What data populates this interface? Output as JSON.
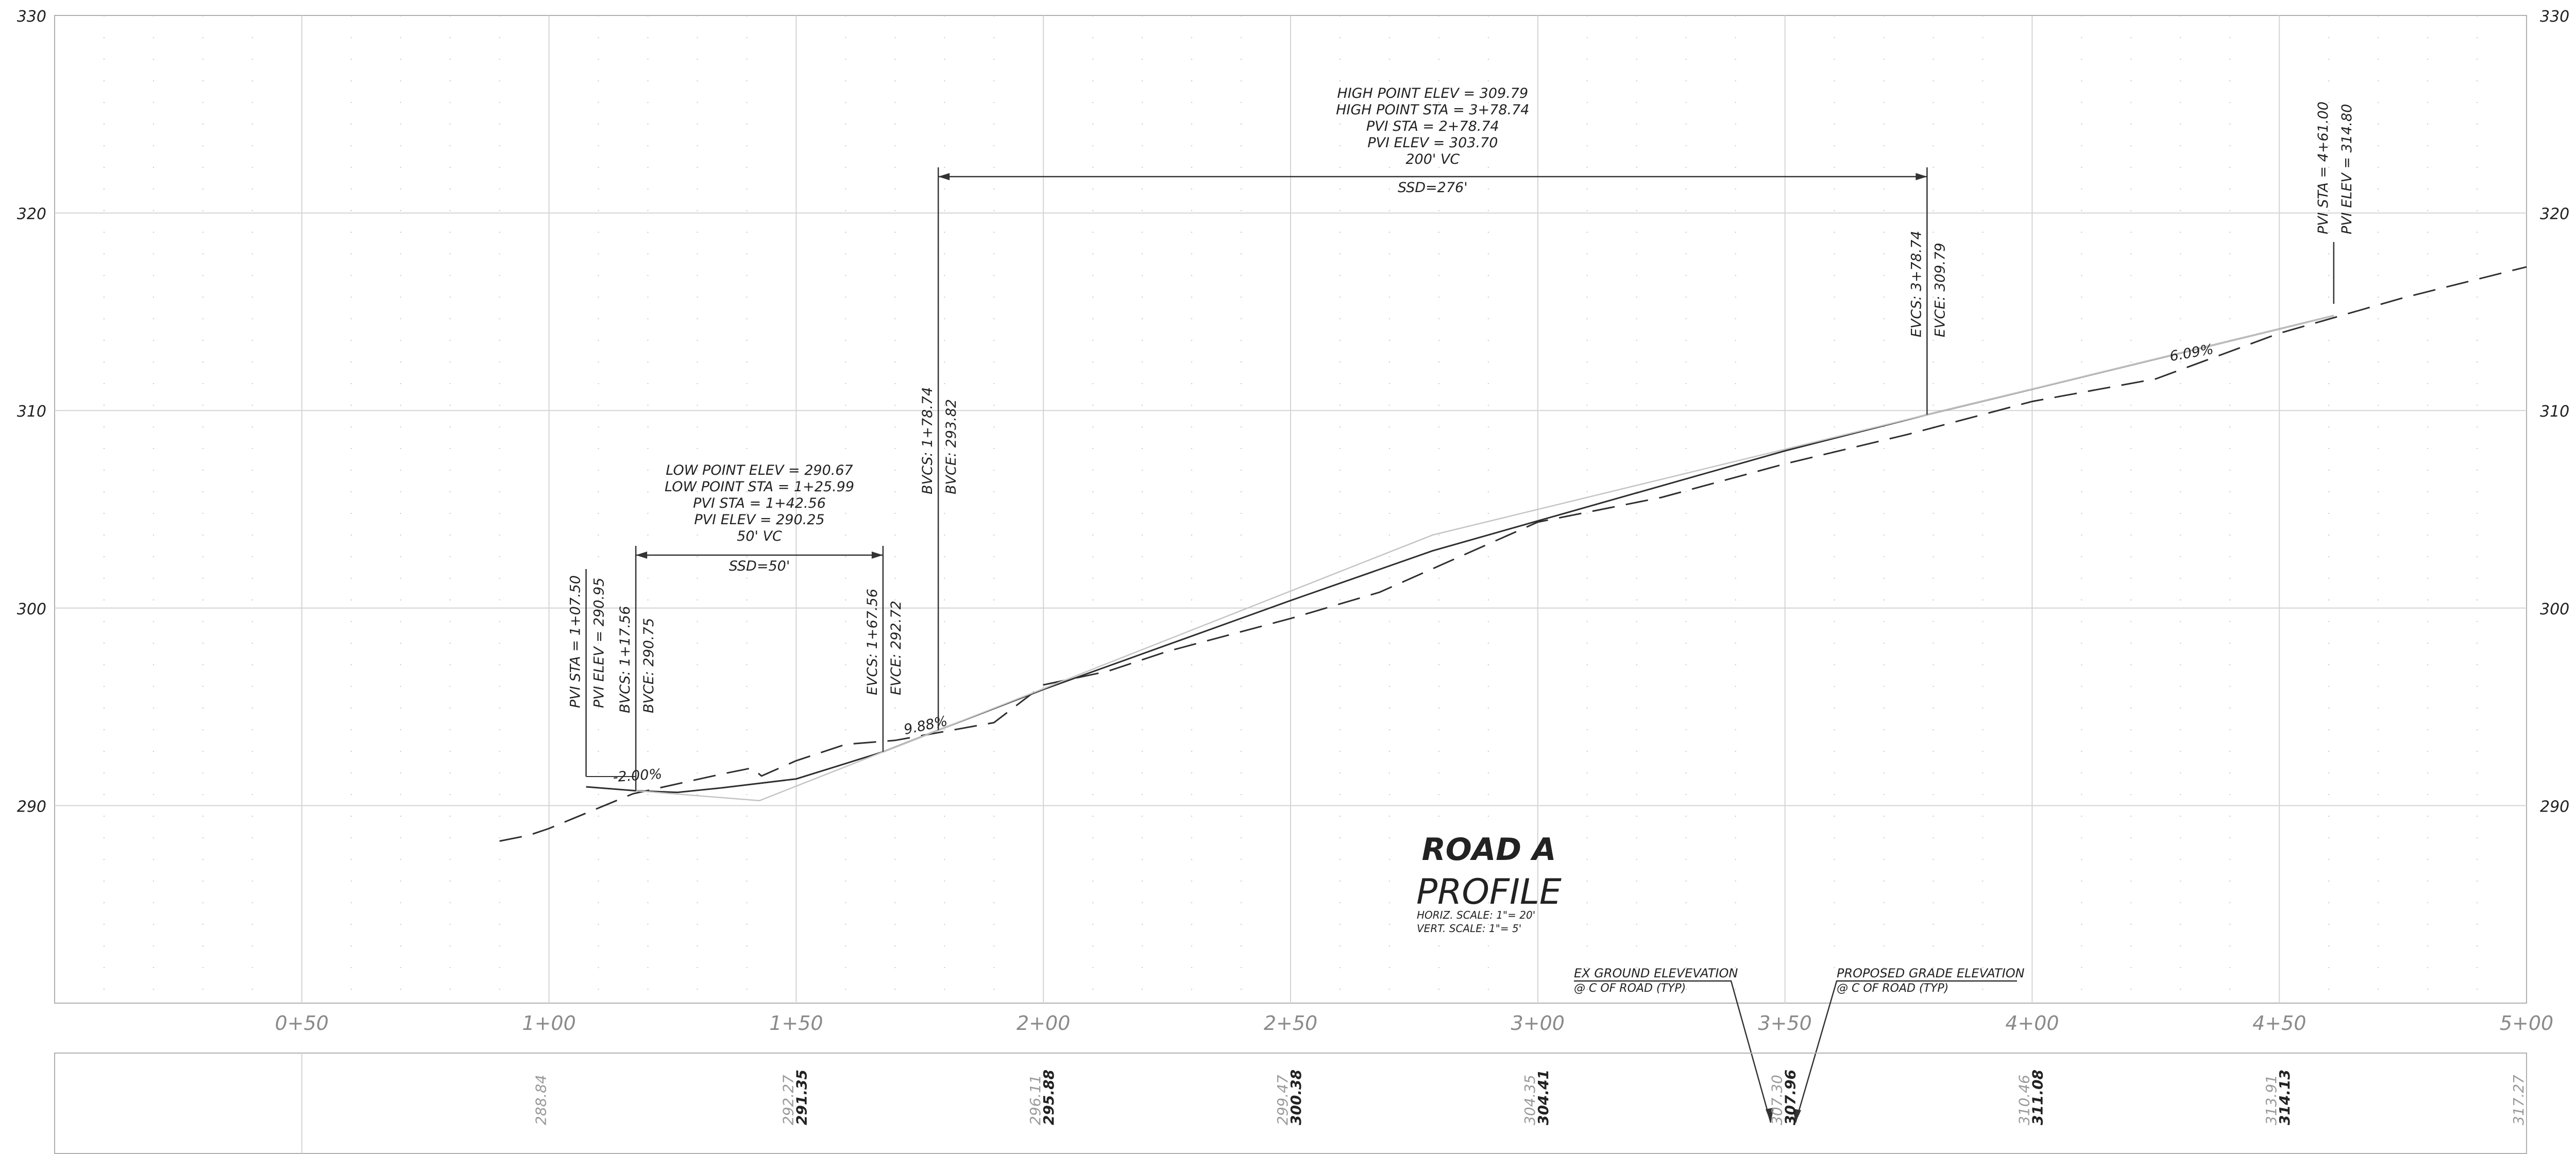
{
  "chart_data": {
    "type": "line",
    "title": "ROAD A",
    "subtitle": "PROFILE",
    "scale_notes": [
      "HORIZ. SCALE:   1\"= 20'",
      "VERT. SCALE:   1\"= 5'"
    ],
    "xlim": [
      0,
      500
    ],
    "ylim": [
      280,
      330
    ],
    "x_ticks": [
      "0+50",
      "1+00",
      "1+50",
      "2+00",
      "2+50",
      "3+00",
      "3+50",
      "4+00",
      "4+50",
      "5+00"
    ],
    "y_ticks": [
      "290",
      "300",
      "310",
      "320",
      "330"
    ],
    "series": [
      {
        "name": "PROPOSED GRADE ELEVATION",
        "style": "solid",
        "points": [
          [
            107.5,
            290.95
          ],
          [
            117.56,
            290.75
          ],
          [
            125.99,
            290.67
          ],
          [
            135,
            290.9
          ],
          [
            150,
            291.35
          ],
          [
            167.56,
            292.72
          ],
          [
            178.74,
            293.82
          ],
          [
            200,
            295.88
          ],
          [
            250,
            300.38
          ],
          [
            278.74,
            302.9
          ],
          [
            300,
            304.41
          ],
          [
            350,
            307.96
          ],
          [
            378.74,
            309.79
          ],
          [
            400,
            311.08
          ],
          [
            450,
            314.13
          ],
          [
            461,
            314.8
          ]
        ]
      },
      {
        "name": "EX GROUND ELEVEVATION",
        "style": "dashed",
        "points": [
          [
            90,
            288.2
          ],
          [
            96,
            288.5
          ],
          [
            100,
            288.84
          ],
          [
            117,
            290.6
          ],
          [
            135,
            291.6
          ],
          [
            141,
            291.9
          ],
          [
            143,
            291.5
          ],
          [
            150,
            292.27
          ],
          [
            160,
            293.1
          ],
          [
            170,
            293.3
          ],
          [
            190,
            294.2
          ],
          [
            200,
            296.11
          ],
          [
            213,
            296.8
          ],
          [
            225,
            297.8
          ],
          [
            250,
            299.47
          ],
          [
            268,
            300.8
          ],
          [
            300,
            304.35
          ],
          [
            325,
            305.6
          ],
          [
            350,
            307.3
          ],
          [
            375,
            308.8
          ],
          [
            400,
            310.46
          ],
          [
            425,
            311.6
          ],
          [
            450,
            313.91
          ],
          [
            475,
            315.7
          ],
          [
            500,
            317.27
          ]
        ]
      },
      {
        "name": "",
        "style": "thin",
        "points": [
          [
            117.56,
            290.75
          ],
          [
            142.56,
            290.25
          ],
          [
            178.74,
            293.82
          ],
          [
            278.74,
            303.7
          ],
          [
            378.74,
            309.79
          ],
          [
            461,
            314.8
          ]
        ]
      }
    ],
    "vertical_curves": [
      {
        "labels": [
          "LOW POINT ELEV = 290.67",
          "LOW POINT STA = 1+25.99",
          "PVI STA = 1+42.56",
          "PVI ELEV = 290.25",
          "50' VC"
        ],
        "ssd": "SSD=50'",
        "bvc": {
          "station": 117.56,
          "elev": 290.75,
          "label_a": "BVCS: 1+17.56",
          "label_b": "BVCE: 290.75"
        },
        "evc": {
          "station": 167.56,
          "elev": 292.72,
          "label_a": "EVCS: 1+67.56",
          "label_b": "EVCE: 292.72"
        }
      },
      {
        "labels": [
          "HIGH POINT ELEV = 309.79",
          "HIGH POINT STA = 3+78.74",
          "PVI STA = 2+78.74",
          "PVI ELEV = 303.70",
          "200' VC"
        ],
        "ssd": "SSD=276'",
        "bvc": {
          "station": 178.74,
          "elev": 293.82,
          "label_a": "BVCS: 1+78.74",
          "label_b": "BVCE: 293.82"
        },
        "evc": {
          "station": 378.74,
          "elev": 309.79,
          "label_a": "EVCS: 3+78.74",
          "label_b": "EVCE: 309.79"
        }
      }
    ],
    "pvi_callouts": [
      {
        "station": 107.5,
        "elev": 290.95,
        "label_a": "PVI STA = 1+07.50",
        "label_b": "PVI ELEV = 290.95"
      },
      {
        "station": 461.0,
        "elev": 314.8,
        "label_a": "PVI STA = 4+61.00",
        "label_b": "PVI ELEV = 314.80"
      }
    ],
    "grade_labels": [
      {
        "text": "-2.00%",
        "station": 113,
        "elev": 291.2
      },
      {
        "text": "9.88%",
        "station": 172,
        "elev": 293.6
      },
      {
        "text": "6.09%",
        "station": 428,
        "elev": 312.5
      }
    ],
    "legend_callouts": [
      {
        "line1": "EX GROUND ELEVEVATION",
        "line2": "@ C OF ROAD (TYP)"
      },
      {
        "line1": "PROPOSED GRADE ELEVATION",
        "line2": "@ C OF ROAD (TYP)"
      }
    ],
    "elevation_table": [
      {
        "station": 100,
        "existing": "288.84",
        "proposed": ""
      },
      {
        "station": 150,
        "existing": "292.27",
        "proposed": "291.35"
      },
      {
        "station": 200,
        "existing": "296.11",
        "proposed": "295.88"
      },
      {
        "station": 250,
        "existing": "299.47",
        "proposed": "300.38"
      },
      {
        "station": 300,
        "existing": "304.35",
        "proposed": "304.41"
      },
      {
        "station": 350,
        "existing": "307.30",
        "proposed": "307.96"
      },
      {
        "station": 400,
        "existing": "310.46",
        "proposed": "311.08"
      },
      {
        "station": 450,
        "existing": "313.91",
        "proposed": "314.13"
      },
      {
        "station": 500,
        "existing": "317.27",
        "proposed": ""
      }
    ]
  }
}
